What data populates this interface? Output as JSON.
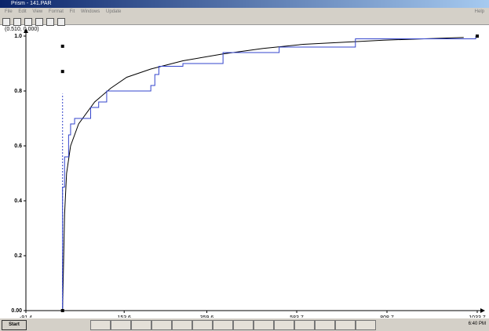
{
  "window": {
    "title": "Prism - 141.PAR",
    "menu": [
      "File",
      "Edit",
      "View",
      "Format",
      "Fit",
      "Windows",
      "Update"
    ],
    "help": "Help"
  },
  "chart_data": {
    "type": "line",
    "annotation": "(0.510, 0.000)",
    "xlim": [
      -91.4,
      1033.7
    ],
    "xticks": [
      -91.4,
      153.6,
      359.6,
      583.7,
      808.7,
      1033.7
    ],
    "ylim": [
      0,
      1
    ],
    "yticks": [
      {
        "value": 0,
        "label": "0.00"
      },
      0.2,
      0.4,
      0.6,
      0.8,
      {
        "value": 1,
        "label": "1.0"
      }
    ],
    "series": [
      {
        "mark": "line",
        "color": "#000000",
        "dashed": false,
        "x": [
          0,
          5,
          10,
          20,
          40,
          80,
          120,
          160,
          220,
          300,
          400,
          500,
          600,
          800,
          1000
        ],
        "values": [
          0,
          0.35,
          0.5,
          0.6,
          0.68,
          0.76,
          0.81,
          0.85,
          0.88,
          0.91,
          0.935,
          0.955,
          0.97,
          0.985,
          0.995
        ]
      },
      {
        "mark": "line",
        "color": "#3344cc",
        "dashed": false,
        "x": [
          0,
          0,
          5,
          5,
          15,
          15,
          20,
          20,
          30,
          30,
          60,
          70,
          70,
          90,
          90,
          110,
          110,
          220,
          220,
          230,
          230,
          240,
          240,
          300,
          300,
          400,
          400,
          540,
          540,
          730,
          730,
          1030,
          1030
        ],
        "values": [
          0,
          0.45,
          0.45,
          0.56,
          0.56,
          0.64,
          0.64,
          0.68,
          0.68,
          0.7,
          0.7,
          0.7,
          0.74,
          0.74,
          0.76,
          0.76,
          0.8,
          0.8,
          0.82,
          0.82,
          0.86,
          0.86,
          0.89,
          0.89,
          0.9,
          0.9,
          0.94,
          0.94,
          0.96,
          0.96,
          0.99,
          0.99,
          1.0
        ]
      },
      {
        "mark": "line",
        "color": "#3344cc",
        "dashed": true,
        "x": [
          0,
          0
        ],
        "values": [
          0,
          0.79
        ]
      },
      {
        "mark": "square",
        "color": "#000000",
        "x": [
          0,
          0,
          0,
          1033.7
        ],
        "values": [
          0.963,
          0.871,
          0,
          1.0
        ]
      }
    ]
  },
  "taskbar": {
    "start": "Start",
    "clock": "6:40 PM"
  }
}
